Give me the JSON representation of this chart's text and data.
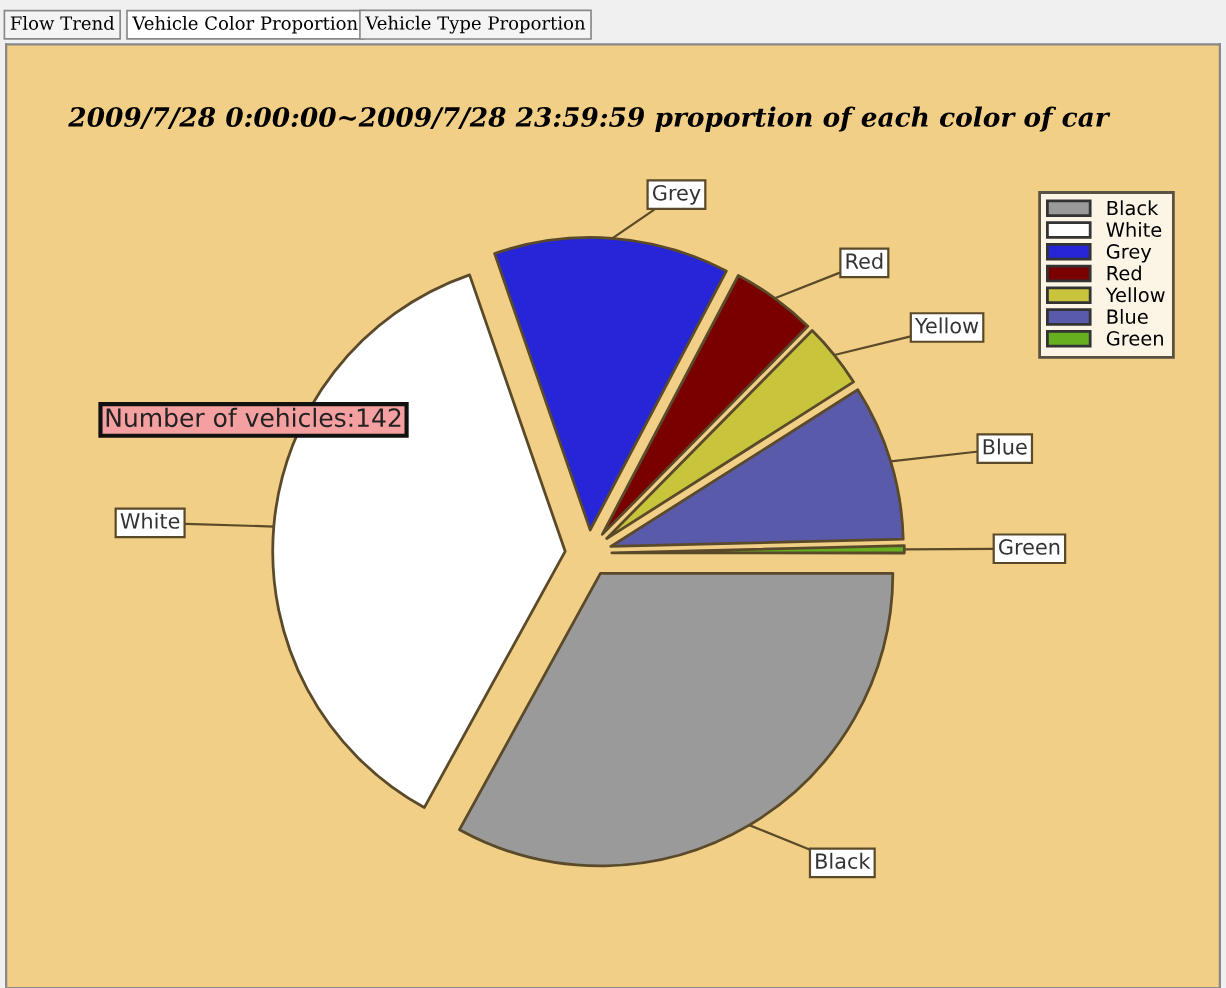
{
  "chart_data": {
    "type": "pie",
    "title": "2009/7/28 0:00:00~2009/7/28 23:59:59 proportion of each color of car",
    "categories": [
      "Black",
      "White",
      "Grey",
      "Red",
      "Yellow",
      "Blue",
      "Green"
    ],
    "values": [
      33,
      36.7,
      13,
      4.7,
      3.6,
      8.6,
      0.4
    ],
    "colors": [
      "#9a9a9a",
      "#ffffff",
      "#2626d8",
      "#7a0000",
      "#c8c43c",
      "#5a5aaa",
      "#66b020"
    ],
    "legend": "top right",
    "annotations": [
      "Flow Trend",
      "Vehicle Color Proportion",
      "Vehicle Type Proportion",
      "Number of vehicles:142"
    ]
  }
}
